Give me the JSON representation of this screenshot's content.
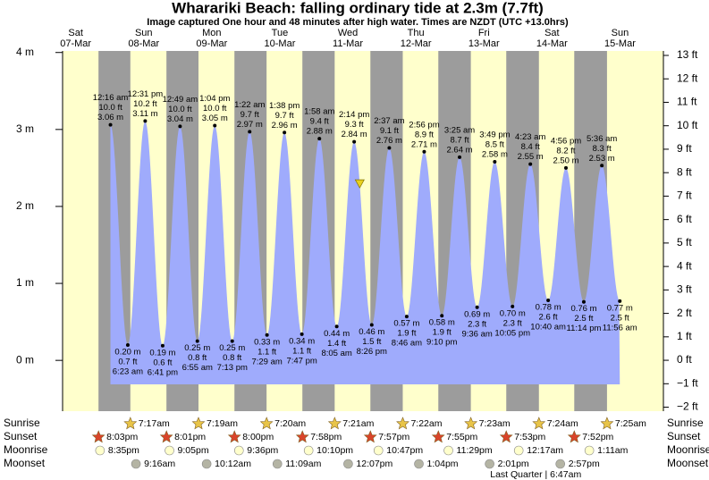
{
  "chart_data": {
    "type": "tide",
    "title": "Wharariki Beach: falling  ordinary tide at 2.3m (7.7ft)",
    "subtitle": "Image captured One hour and 48 minutes after high water. Times are NZDT (UTC +13.0hrs)",
    "ylim": [
      -0.66,
      4.02
    ],
    "yticks": [
      {
        "value": 4,
        "label": "4 m"
      },
      {
        "value": 3,
        "label": "3 m"
      },
      {
        "value": 2,
        "label": "2 m"
      },
      {
        "value": 1,
        "label": "1 m"
      },
      {
        "value": 0,
        "label": "0 m"
      }
    ],
    "y2lim": [
      -2.17,
      13.19
    ],
    "y2ticks": [
      {
        "value": 13,
        "label": "13 ft"
      },
      {
        "value": 12,
        "label": "12 ft"
      },
      {
        "value": 11,
        "label": "11 ft"
      },
      {
        "value": 10,
        "label": "10 ft"
      },
      {
        "value": 9,
        "label": "9 ft"
      },
      {
        "value": 8,
        "label": "8 ft"
      },
      {
        "value": 7,
        "label": "7 ft"
      },
      {
        "value": 6,
        "label": "6 ft"
      },
      {
        "value": 5,
        "label": "5 ft"
      },
      {
        "value": 4,
        "label": "4 ft"
      },
      {
        "value": 3,
        "label": "3 ft"
      },
      {
        "value": 2,
        "label": "2 ft"
      },
      {
        "value": 1,
        "label": "1 ft"
      },
      {
        "value": 0,
        "label": "0 ft"
      },
      {
        "value": -1,
        "label": "−1 ft"
      },
      {
        "value": -2,
        "label": "−2 ft"
      }
    ],
    "colors": {
      "day": "#ffffcc",
      "night": "#9c9c9c",
      "tide": "#9fabfc",
      "day_label": "#cc0000",
      "sunrise": "#e8c448",
      "sunset": "#d9442a",
      "moonrise": "#ffffcc",
      "moonset": "#b4b4a4",
      "marker": "#e8d020"
    },
    "rows": {
      "sunrise": "Sunrise",
      "sunset": "Sunset",
      "moonrise": "Moonrise",
      "moonset": "Moonset"
    },
    "days": [
      {
        "name": "Sat",
        "date": "07-Mar",
        "sunset": "8:03pm",
        "moonrise": "8:35pm",
        "tides": []
      },
      {
        "name": "Sun",
        "date": "08-Mar",
        "sunrise": "7:17am",
        "sunset": "8:01pm",
        "moonrise": "9:05pm",
        "moonset": "9:16am",
        "tides": [
          {
            "time": "12:16 am",
            "value": 3.06,
            "value_label": "3.06 m",
            "ft": 10.0,
            "ft_label": "10.0 ft"
          },
          {
            "time": "6:23 am",
            "value": 0.2,
            "value_label": "0.20 m",
            "ft": 0.7,
            "ft_label": "0.7 ft"
          },
          {
            "time": "12:31 pm",
            "value": 3.11,
            "value_label": "3.11 m",
            "ft": 10.2,
            "ft_label": "10.2 ft"
          },
          {
            "time": "6:41 pm",
            "value": 0.19,
            "value_label": "0.19 m",
            "ft": 0.6,
            "ft_label": "0.6 ft"
          }
        ]
      },
      {
        "name": "Mon",
        "date": "09-Mar",
        "sunrise": "7:19am",
        "sunset": "8:00pm",
        "moonrise": "9:36pm",
        "moonset": "10:12am",
        "tides": [
          {
            "time": "12:49 am",
            "value": 3.04,
            "value_label": "3.04 m",
            "ft": 10.0,
            "ft_label": "10.0 ft"
          },
          {
            "time": "6:55 am",
            "value": 0.25,
            "value_label": "0.25 m",
            "ft": 0.8,
            "ft_label": "0.8 ft"
          },
          {
            "time": "1:04 pm",
            "value": 3.05,
            "value_label": "3.05 m",
            "ft": 10.0,
            "ft_label": "10.0 ft"
          },
          {
            "time": "7:13 pm",
            "value": 0.25,
            "value_label": "0.25 m",
            "ft": 0.8,
            "ft_label": "0.8 ft"
          }
        ]
      },
      {
        "name": "Tue",
        "date": "10-Mar",
        "sunrise": "7:20am",
        "sunset": "7:58pm",
        "moonrise": "10:10pm",
        "moonset": "11:09am",
        "tides": [
          {
            "time": "1:22 am",
            "value": 2.97,
            "value_label": "2.97 m",
            "ft": 9.7,
            "ft_label": "9.7 ft"
          },
          {
            "time": "7:29 am",
            "value": 0.33,
            "value_label": "0.33 m",
            "ft": 1.1,
            "ft_label": "1.1 ft"
          },
          {
            "time": "1:38 pm",
            "value": 2.96,
            "value_label": "2.96 m",
            "ft": 9.7,
            "ft_label": "9.7 ft"
          },
          {
            "time": "7:47 pm",
            "value": 0.34,
            "value_label": "0.34 m",
            "ft": 1.1,
            "ft_label": "1.1 ft"
          }
        ]
      },
      {
        "name": "Wed",
        "date": "11-Mar",
        "sunrise": "7:21am",
        "sunset": "7:57pm",
        "moonrise": "10:47pm",
        "moonset": "12:07pm",
        "tides": [
          {
            "time": "1:58 am",
            "value": 2.88,
            "value_label": "2.88 m",
            "ft": 9.4,
            "ft_label": "9.4 ft"
          },
          {
            "time": "8:05 am",
            "value": 0.44,
            "value_label": "0.44 m",
            "ft": 1.4,
            "ft_label": "1.4 ft"
          },
          {
            "time": "2:14 pm",
            "value": 2.84,
            "value_label": "2.84 m",
            "ft": 9.3,
            "ft_label": "9.3 ft",
            "current_height": 2.3
          },
          {
            "time": "8:26 pm",
            "value": 0.46,
            "value_label": "0.46 m",
            "ft": 1.5,
            "ft_label": "1.5 ft"
          }
        ]
      },
      {
        "name": "Thu",
        "date": "12-Mar",
        "sunrise": "7:22am",
        "sunset": "7:55pm",
        "moonrise": "11:29pm",
        "moonset": "1:04pm",
        "tides": [
          {
            "time": "2:37 am",
            "value": 2.76,
            "value_label": "2.76 m",
            "ft": 9.1,
            "ft_label": "9.1 ft"
          },
          {
            "time": "8:46 am",
            "value": 0.57,
            "value_label": "0.57 m",
            "ft": 1.9,
            "ft_label": "1.9 ft"
          },
          {
            "time": "2:56 pm",
            "value": 2.71,
            "value_label": "2.71 m",
            "ft": 8.9,
            "ft_label": "8.9 ft"
          },
          {
            "time": "9:10 pm",
            "value": 0.58,
            "value_label": "0.58 m",
            "ft": 1.9,
            "ft_label": "1.9 ft"
          }
        ]
      },
      {
        "name": "Fri",
        "date": "13-Mar",
        "sunrise": "7:23am",
        "sunset": "7:53pm",
        "moonset": "2:01pm",
        "moon_phase": "Last Quarter | 6:47am",
        "tides": [
          {
            "time": "3:25 am",
            "value": 2.64,
            "value_label": "2.64 m",
            "ft": 8.7,
            "ft_label": "8.7 ft"
          },
          {
            "time": "9:36 am",
            "value": 0.69,
            "value_label": "0.69 m",
            "ft": 2.3,
            "ft_label": "2.3 ft"
          },
          {
            "time": "3:49 pm",
            "value": 2.58,
            "value_label": "2.58 m",
            "ft": 8.5,
            "ft_label": "8.5 ft"
          },
          {
            "time": "10:05 pm",
            "value": 0.7,
            "value_label": "0.70 m",
            "ft": 2.3,
            "ft_label": "2.3 ft"
          }
        ]
      },
      {
        "name": "Sat",
        "date": "14-Mar",
        "sunrise": "7:24am",
        "sunset": "7:52pm",
        "moonrise": "12:17am",
        "moonset": "2:57pm",
        "tides": [
          {
            "time": "4:23 am",
            "value": 2.55,
            "value_label": "2.55 m",
            "ft": 8.4,
            "ft_label": "8.4 ft"
          },
          {
            "time": "10:40 am",
            "value": 0.78,
            "value_label": "0.78 m",
            "ft": 2.6,
            "ft_label": "2.6 ft"
          },
          {
            "time": "4:56 pm",
            "value": 2.5,
            "value_label": "2.50 m",
            "ft": 8.2,
            "ft_label": "8.2 ft"
          },
          {
            "time": "11:14 pm",
            "value": 0.76,
            "value_label": "0.76 m",
            "ft": 2.5,
            "ft_label": "2.5 ft"
          }
        ]
      },
      {
        "name": "Sun",
        "date": "15-Mar",
        "sunrise": "7:25am",
        "moonrise": "1:11am",
        "tides": [
          {
            "time": "5:36 am",
            "value": 2.53,
            "value_label": "2.53 m",
            "ft": 8.3,
            "ft_label": "8.3 ft"
          },
          {
            "time": "11:56 am",
            "value": 0.77,
            "value_label": "0.77 m",
            "ft": 2.5,
            "ft_label": "2.5 ft"
          }
        ]
      }
    ]
  }
}
